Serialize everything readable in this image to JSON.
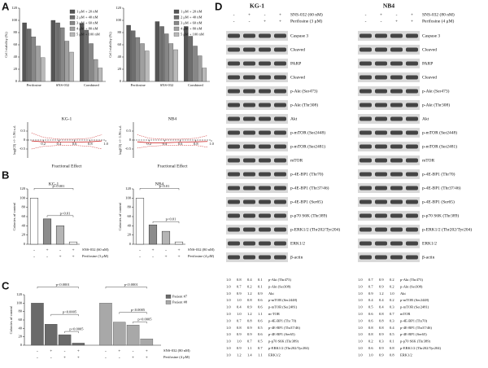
{
  "panel_labels": [
    "A",
    "B",
    "C",
    "D"
  ],
  "chart_data": [
    {
      "type": "bar",
      "ylabel": "Cell viability (%)",
      "categories": [
        "Perifosine",
        "SNS-032",
        "Combined"
      ],
      "ylim": [
        0,
        120
      ],
      "yticks": [
        0,
        20,
        40,
        60,
        80,
        100,
        120
      ],
      "legend": "upper right",
      "series": [
        {
          "name": "1 μM + 20 nM",
          "color": "#555555",
          "values": [
            96,
            100,
            95
          ]
        },
        {
          "name": "2 μM + 40 nM",
          "color": "#6e6e6e",
          "values": [
            86,
            96,
            84
          ]
        },
        {
          "name": "3 μM + 60 nM",
          "color": "#878787",
          "values": [
            73,
            88,
            62
          ]
        },
        {
          "name": "4 μM + 80 nM",
          "color": "#a0a0a0",
          "values": [
            58,
            66,
            36
          ]
        },
        {
          "name": "5 μM + 100 nM",
          "color": "#b9b9b9",
          "values": [
            39,
            48,
            22
          ]
        }
      ]
    },
    {
      "type": "bar",
      "ylabel": "Cell viability (%)",
      "categories": [
        "Perifosine",
        "SNS-032",
        "Combined"
      ],
      "ylim": [
        0,
        120
      ],
      "yticks": [
        0,
        20,
        40,
        60,
        80,
        100,
        120
      ],
      "legend": "upper right",
      "series": [
        {
          "name": "1 μM + 20 nM",
          "color": "#555555",
          "values": [
            92,
            98,
            90
          ]
        },
        {
          "name": "2 μM + 40 nM",
          "color": "#6e6e6e",
          "values": [
            83,
            90,
            74
          ]
        },
        {
          "name": "3 μM + 60 nM",
          "color": "#878787",
          "values": [
            72,
            78,
            58
          ]
        },
        {
          "name": "4 μM + 80 nM",
          "color": "#a0a0a0",
          "values": [
            62,
            62,
            42
          ]
        },
        {
          "name": "5 μM + 100 nM",
          "color": "#b9b9b9",
          "values": [
            50,
            52,
            22
          ]
        }
      ]
    },
    {
      "type": "line",
      "title": "KG-1",
      "xlabel": "Fractional Effect",
      "ylabel": "log(CI) +/- 1.96 s.d.",
      "xlim": [
        0,
        1
      ],
      "xticks": [
        0.2,
        0.4,
        0.6,
        0.8,
        {
          "value": 1,
          "label": "1.0"
        }
      ],
      "ylim": [
        -1,
        1
      ],
      "yticks": [
        -0.5,
        0,
        0.5
      ],
      "x": [
        0.05,
        0.2,
        0.4,
        0.6,
        0.8,
        0.95
      ],
      "series": [
        {
          "color": "#cc2222",
          "dash": false,
          "values": [
            -0.05,
            -0.1,
            -0.12,
            -0.12,
            -0.1,
            -0.05
          ]
        },
        {
          "color": "#cc2222",
          "dash": true,
          "values": [
            0.4,
            0.15,
            0.05,
            0.05,
            0.1,
            0.3
          ]
        },
        {
          "color": "#cc2222",
          "dash": true,
          "values": [
            -0.5,
            -0.35,
            -0.3,
            -0.3,
            -0.35,
            -0.5
          ]
        }
      ]
    },
    {
      "type": "line",
      "title": "NB4",
      "xlabel": "Fractional Effect",
      "ylabel": "log(CI) +/- 1.96 s.d.",
      "xlim": [
        0,
        1
      ],
      "xticks": [
        0.2,
        0.4,
        0.6,
        0.8,
        {
          "value": 1,
          "label": "1.0"
        }
      ],
      "ylim": [
        -1,
        1
      ],
      "yticks": [
        -0.5,
        0,
        0.5
      ],
      "x": [
        0.05,
        0.2,
        0.4,
        0.6,
        0.8,
        0.95
      ],
      "series": [
        {
          "color": "#cc2222",
          "dash": false,
          "values": [
            -0.1,
            -0.15,
            -0.15,
            -0.12,
            -0.1,
            -0.08
          ]
        },
        {
          "color": "#cc2222",
          "dash": true,
          "values": [
            0.3,
            0.1,
            0.05,
            0.05,
            0.1,
            0.25
          ]
        },
        {
          "color": "#cc2222",
          "dash": true,
          "values": [
            -0.45,
            -0.35,
            -0.3,
            -0.3,
            -0.3,
            -0.4
          ]
        }
      ]
    },
    {
      "type": "bar",
      "title": "KG-1",
      "ylabel": "Colonies of control",
      "categories": [
        null,
        null,
        null,
        null
      ],
      "values": [
        100,
        55,
        40,
        5
      ],
      "colors": [
        "#ffffff",
        "#8c8c8c",
        "#b5b5b5",
        "#ffffff"
      ],
      "ylim": [
        0,
        120
      ],
      "yticks": [
        0,
        20,
        40,
        60,
        80,
        100,
        120
      ],
      "annotations": [
        "p<0.001",
        "p<0.01"
      ],
      "treatments": [
        {
          "label": "SNS-032 (60 nM)",
          "signs": [
            "-",
            "+",
            "-",
            "+"
          ]
        },
        {
          "label": "Perifosine (3 μM)",
          "signs": [
            "-",
            "-",
            "+",
            "+"
          ]
        }
      ]
    },
    {
      "type": "bar",
      "title": "NB4",
      "ylabel": "Colonies of control",
      "categories": [
        null,
        null,
        null,
        null
      ],
      "values": [
        100,
        42,
        28,
        5
      ],
      "colors": [
        "#ffffff",
        "#8c8c8c",
        "#b5b5b5",
        "#ffffff"
      ],
      "ylim": [
        0,
        120
      ],
      "yticks": [
        0,
        20,
        40,
        60,
        80,
        100,
        120
      ],
      "annotations": [
        "p<0.01",
        "p<0.01"
      ],
      "treatments": [
        {
          "label": "SNS-032 (80 nM)",
          "signs": [
            "-",
            "+",
            "-",
            "+"
          ]
        },
        {
          "label": "Perifosine (4 μM)",
          "signs": [
            "-",
            "-",
            "+",
            "+"
          ]
        }
      ]
    },
    {
      "type": "bar",
      "ylabel": "Colonies of control",
      "categories": [
        null,
        null,
        null,
        null
      ],
      "ylim": [
        0,
        120
      ],
      "yticks": [
        0,
        20,
        40,
        60,
        80,
        100,
        120
      ],
      "legend": "right",
      "series": [
        {
          "name": "Patient #7",
          "color": "#6a6a6a",
          "values": [
            100,
            50,
            25,
            5
          ]
        },
        {
          "name": "Patient #8",
          "color": "#a8a8a8",
          "values": [
            100,
            55,
            48,
            15
          ]
        }
      ],
      "annotations": [
        "p<0.0001",
        "p<0.0005",
        "p<0.0005",
        "p<0.0001",
        "p<0.0005",
        "p<0.0005"
      ],
      "treatments": [
        {
          "label": "SNS-032 (80 nM)",
          "signs": [
            "-",
            "+",
            "-",
            "+",
            "-",
            "+",
            "-",
            "+"
          ]
        },
        {
          "label": "Perifosine (4 μM)",
          "signs": [
            "-",
            "-",
            "+",
            "+",
            "-",
            "-",
            "+",
            "+"
          ]
        }
      ]
    }
  ],
  "blots": [
    {
      "title": "KG-1",
      "treatments": [
        {
          "label": "SNS-032 (60 nM)",
          "signs": [
            "-",
            "+",
            "-",
            "+"
          ]
        },
        {
          "label": "Perifosine (3 μM)",
          "signs": [
            "-",
            "-",
            "+",
            "+"
          ]
        }
      ],
      "proteins": [
        "Caspase 3",
        "Cleaved",
        "PARP",
        "Cleaved",
        "p-Akt (Ser473)",
        "p-Akt (Thr308)",
        "Akt",
        "p-mTOR (Ser2448)",
        "p-mTOR (Ser2481)",
        "mTOR",
        "p-4E-BP1 (Thr70)",
        "p-4E-BP1 (Thr37/46)",
        "p-4E-BP1 (Ser65)",
        "p-p70 S6K (Thr389)",
        "p-ERK1/2 (Thr202/Tyr204)",
        "ERK1/2",
        "β-actin"
      ],
      "quantification": [
        {
          "values": [
            "1.0",
            "0.8",
            "0.4",
            "0.1"
          ],
          "label": "p-Akt (Thr473)"
        },
        {
          "values": [
            "1.0",
            "0.7",
            "0.2",
            "0.1"
          ],
          "label": "p-Akt (Ser308)"
        },
        {
          "values": [
            "1.0",
            "0.9",
            "1.2",
            "0.9"
          ],
          "label": "Akt"
        },
        {
          "values": [
            "1.0",
            "1.0",
            "0.8",
            "0.6"
          ],
          "label": "p-mTOR (Ser2448)"
        },
        {
          "values": [
            "1.0",
            "0.4",
            "0.9",
            "0.6"
          ],
          "label": "p-mTOR (Ser2481)"
        },
        {
          "values": [
            "1.0",
            "1.0",
            "1.2",
            "1.1"
          ],
          "label": "m-TOR"
        },
        {
          "values": [
            "1.0",
            "0.7",
            "0.8",
            "0.6"
          ],
          "label": "p-4E-BP1 (Thr 70)"
        },
        {
          "values": [
            "1.0",
            "0.8",
            "0.9",
            "0.5"
          ],
          "label": "p-4E-BP1 (Thr37/46)"
        },
        {
          "values": [
            "1.0",
            "0.9",
            "0.9",
            "0.6"
          ],
          "label": "p-4E-BP1 (Ser65)"
        },
        {
          "values": [
            "1.0",
            "1.0",
            "0.7",
            "0.5"
          ],
          "label": "p-p70 S6K (Thr389)"
        },
        {
          "values": [
            "1.0",
            "0.9",
            "1.1",
            "0.7"
          ],
          "label": "p-ERK1/2 (Thr202/Tyr204)"
        },
        {
          "values": [
            "1.0",
            "1.2",
            "1.4",
            "1.1"
          ],
          "label": "ERK1/2"
        }
      ]
    },
    {
      "title": "NB4",
      "treatments": [
        {
          "label": "SNS-032 (80 nM)",
          "signs": [
            "-",
            "+",
            "-",
            "+"
          ]
        },
        {
          "label": "Perifosine (4 μM)",
          "signs": [
            "-",
            "-",
            "+",
            "+"
          ]
        }
      ],
      "proteins": [
        "Caspase 3",
        "Cleaved",
        "PARP",
        "Cleaved",
        "p-Akt (Ser473)",
        "p-Akt (Thr308)",
        "Akt",
        "p-mTOR (Ser2448)",
        "p-mTOR (Ser2481)",
        "mTOR",
        "p-4E-BP1 (Thr70)",
        "p-4E-BP1 (Thr37/46)",
        "p-4E-BP1 (Ser65)",
        "p-p70 S6K (Thr389)",
        "p-ERK1/2 (Thr202/Tyr204)",
        "ERK1/2",
        "β-actin"
      ],
      "quantification": [
        {
          "values": [
            "1.0",
            "0.7",
            "0.9",
            "0.2"
          ],
          "label": "p-Akt (Thr473)"
        },
        {
          "values": [
            "1.0",
            "0.7",
            "0.9",
            "0.2"
          ],
          "label": "p-Akt (Ser308)"
        },
        {
          "values": [
            "1.0",
            "0.9",
            "1.2",
            "1.0"
          ],
          "label": "Akt"
        },
        {
          "values": [
            "1.0",
            "0.4",
            "0.4",
            "0.2"
          ],
          "label": "p-mTOR (Ser2448)"
        },
        {
          "values": [
            "1.0",
            "0.5",
            "0.4",
            "0.3"
          ],
          "label": "p-mTOR (Ser2481)"
        },
        {
          "values": [
            "1.0",
            "0.6",
            "0.8",
            "0.7"
          ],
          "label": "mTOR"
        },
        {
          "values": [
            "1.0",
            "0.6",
            "0.8",
            "0.3"
          ],
          "label": "p-4E-BP1 (Thr70)"
        },
        {
          "values": [
            "1.0",
            "0.8",
            "0.8",
            "0.4"
          ],
          "label": "p-4E-BP1 (Thr37/46)"
        },
        {
          "values": [
            "1.0",
            "0.8",
            "0.9",
            "0.5"
          ],
          "label": "p-4E-BP1 (Ser65)"
        },
        {
          "values": [
            "1.0",
            "0.2",
            "0.3",
            "0.1"
          ],
          "label": "p-p70 S6K (Thr389)"
        },
        {
          "values": [
            "1.0",
            "0.6",
            "0.9",
            "0.8"
          ],
          "label": "p-ERK1/2 (Thr202/Tyr204)"
        },
        {
          "values": [
            "1.0",
            "1.0",
            "0.9",
            "0.8"
          ],
          "label": "ERK1/2"
        }
      ]
    }
  ]
}
